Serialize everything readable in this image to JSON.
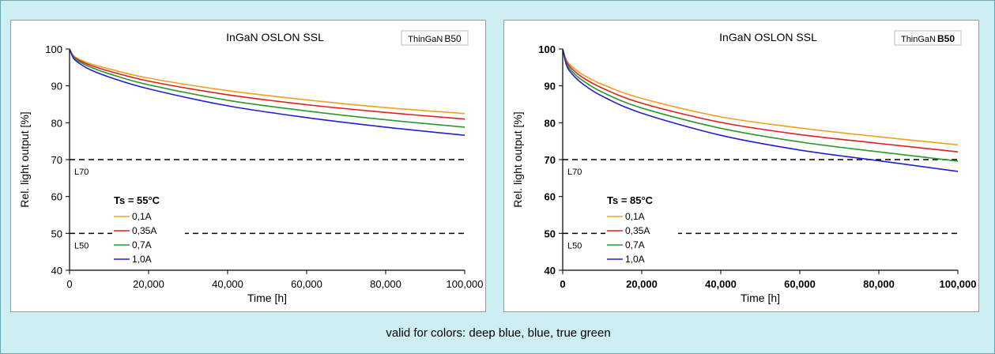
{
  "footer_note": "valid for colors: deep blue, blue, true green",
  "chart_data": [
    {
      "type": "line",
      "title": "InGaN OSLON SSL",
      "badge_prefix": "ThinGaN",
      "badge_suffix": "B50",
      "xlabel": "Time [h]",
      "ylabel": "Rel. light output [%]",
      "xlim": [
        0,
        100000
      ],
      "ylim": [
        40,
        100
      ],
      "x_ticks": [
        "0",
        "20,000",
        "40,000",
        "60,000",
        "80,000",
        "100,000"
      ],
      "y_ticks": [
        "40",
        "50",
        "60",
        "70",
        "80",
        "90",
        "100"
      ],
      "tick_bold": false,
      "thresholds": [
        {
          "label": "L70",
          "value": 70
        },
        {
          "label": "L50",
          "value": 50
        }
      ],
      "condition_label": "Ts = 55°C",
      "x": [
        0,
        1000,
        2500,
        5000,
        10000,
        20000,
        40000,
        60000,
        80000,
        100000
      ],
      "series": [
        {
          "name": "0,1A",
          "color": "#f0a020",
          "values": [
            100,
            98.2,
            97.2,
            96.1,
            94.6,
            92.1,
            88.7,
            86.2,
            84.1,
            82.5
          ]
        },
        {
          "name": "0,35A",
          "color": "#e02020",
          "values": [
            100,
            98.0,
            96.9,
            95.7,
            94.0,
            91.3,
            87.6,
            84.9,
            82.8,
            81.0
          ]
        },
        {
          "name": "0,7A",
          "color": "#2a9a2a",
          "values": [
            100,
            97.8,
            96.6,
            95.2,
            93.3,
            90.3,
            86.1,
            83.2,
            80.8,
            78.8
          ]
        },
        {
          "name": "1,0A",
          "color": "#2020d0",
          "values": [
            100,
            97.5,
            96.1,
            94.5,
            92.4,
            89.2,
            84.6,
            81.4,
            78.8,
            76.6
          ]
        }
      ]
    },
    {
      "type": "line",
      "title": "InGaN OSLON SSL",
      "badge_prefix": "ThinGaN",
      "badge_suffix": "B50",
      "xlabel": "Time [h]",
      "ylabel": "Rel. light output [%]",
      "xlim": [
        0,
        100000
      ],
      "ylim": [
        40,
        100
      ],
      "x_ticks": [
        "0",
        "20,000",
        "40,000",
        "60,000",
        "80,000",
        "100,000"
      ],
      "y_ticks": [
        "40",
        "50",
        "60",
        "70",
        "80",
        "90",
        "100"
      ],
      "tick_bold": true,
      "thresholds": [
        {
          "label": "L70",
          "value": 70
        },
        {
          "label": "L50",
          "value": 50
        }
      ],
      "condition_label": "Ts = 85°C",
      "x": [
        0,
        1000,
        2500,
        5000,
        10000,
        20000,
        40000,
        60000,
        80000,
        100000
      ],
      "series": [
        {
          "name": "0,1A",
          "color": "#f0a020",
          "values": [
            100,
            96.9,
            95.1,
            93.1,
            90.4,
            86.6,
            81.6,
            78.6,
            76.2,
            74.0
          ]
        },
        {
          "name": "0,35A",
          "color": "#e02020",
          "values": [
            100,
            96.5,
            94.5,
            92.3,
            89.4,
            85.3,
            80.1,
            76.8,
            74.4,
            72.1
          ]
        },
        {
          "name": "0,7A",
          "color": "#2a9a2a",
          "values": [
            100,
            96.0,
            93.8,
            91.5,
            88.3,
            84.0,
            78.5,
            74.8,
            72.1,
            69.6
          ]
        },
        {
          "name": "1,0A",
          "color": "#2020d0",
          "values": [
            100,
            95.5,
            93.1,
            90.6,
            87.2,
            82.6,
            76.6,
            72.6,
            69.7,
            66.8
          ]
        }
      ]
    }
  ]
}
